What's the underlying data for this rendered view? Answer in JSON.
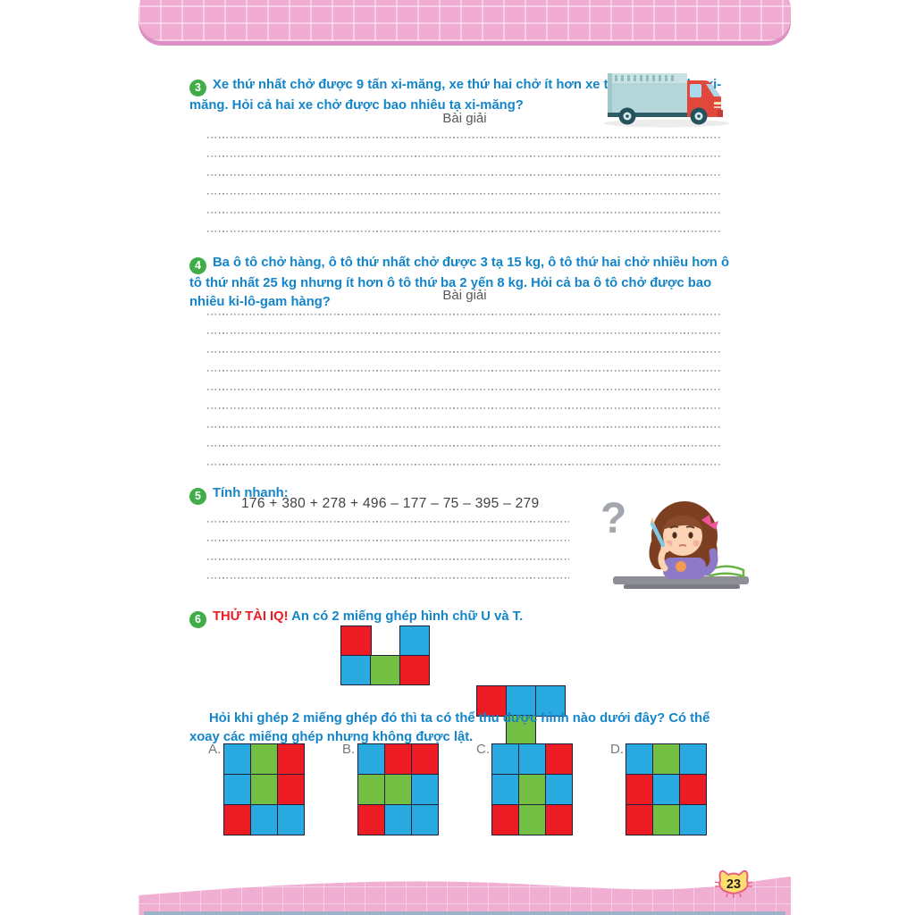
{
  "page_number": "23",
  "colors": {
    "blue": "#29abe2",
    "green": "#72bf44",
    "red": "#ed1c24"
  },
  "exercises": {
    "ex3": {
      "number": "3",
      "text": "Xe thứ nhất chở được 9 tấn xi-măng, xe thứ hai chở ít hơn xe thứ nhất 700 kg xi-măng. Hỏi cả hai xe chở được bao nhiêu tạ xi-măng?",
      "solution_label": "Bài giải",
      "answer_lines": 6
    },
    "ex4": {
      "number": "4",
      "text": "Ba ô tô chở hàng, ô tô thứ nhất chở được 3 tạ 15 kg, ô tô thứ hai chở nhiều hơn ô tô thứ nhất 25 kg nhưng ít hơn ô tô thứ ba 2 yến 8 kg. Hỏi cả ba ô tô chở được bao nhiêu ki-lô-gam hàng?",
      "solution_label": "Bài giải",
      "answer_lines": 9
    },
    "ex5": {
      "number": "5",
      "title": "Tính nhanh:",
      "expression": "176 + 380 + 278 + 496 – 177 – 75 – 395 – 279",
      "answer_lines": 4
    },
    "ex6": {
      "number": "6",
      "tag": "THỬ TÀI IQ!",
      "intro": "An có 2 miếng ghép hình chữ U và T.",
      "question": "Hỏi khi ghép 2 miếng ghép đó thì ta có thể thu được hình nào dưới đây? Có thể xoay các miếng ghép nhưng không được lật."
    }
  },
  "pieces": {
    "u": {
      "cells": [
        [
          "red",
          "",
          "blue"
        ],
        [
          "blue",
          "green",
          "red"
        ]
      ]
    },
    "t": {
      "cells": [
        [
          "red",
          "blue",
          "blue"
        ],
        [
          "",
          "green",
          ""
        ]
      ]
    }
  },
  "options": [
    {
      "label": "A.",
      "grid": [
        [
          "blue",
          "green",
          "red"
        ],
        [
          "blue",
          "green",
          "red"
        ],
        [
          "red",
          "blue",
          "blue"
        ]
      ]
    },
    {
      "label": "B.",
      "grid": [
        [
          "blue",
          "red",
          "red"
        ],
        [
          "green",
          "green",
          "blue"
        ],
        [
          "red",
          "blue",
          "blue"
        ]
      ]
    },
    {
      "label": "C.",
      "grid": [
        [
          "blue",
          "blue",
          "red"
        ],
        [
          "blue",
          "green",
          "blue"
        ],
        [
          "red",
          "green",
          "red"
        ]
      ]
    },
    {
      "label": "D.",
      "grid": [
        [
          "blue",
          "green",
          "blue"
        ],
        [
          "red",
          "blue",
          "red"
        ],
        [
          "red",
          "green",
          "blue"
        ]
      ]
    }
  ],
  "illustrations": {
    "girl_question_mark": "?"
  }
}
